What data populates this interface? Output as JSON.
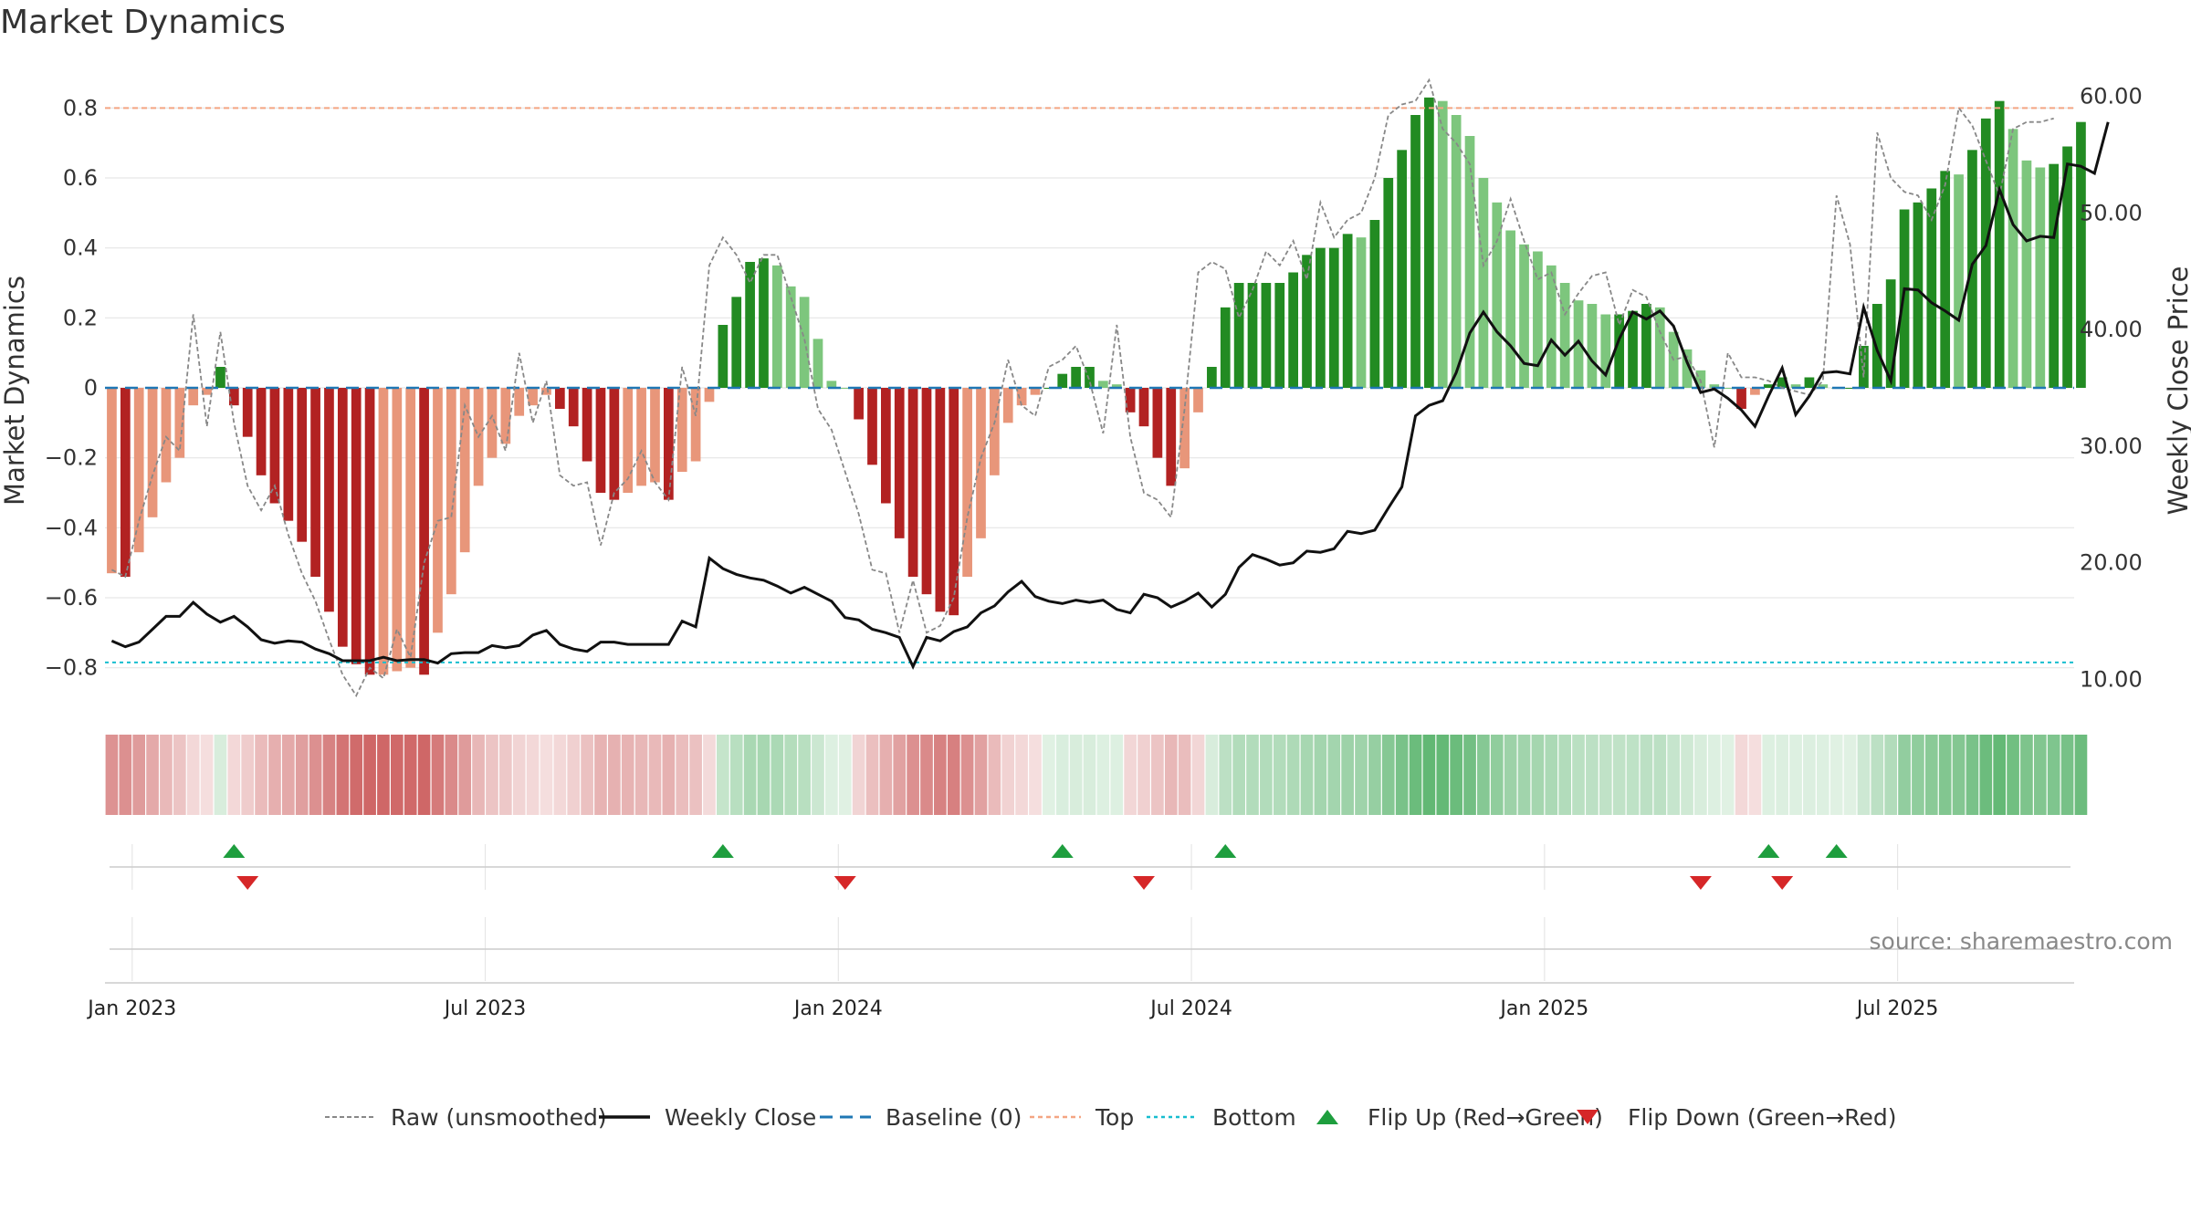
{
  "title": "Market Dynamics",
  "source": "source: sharemaestro.com",
  "colors": {
    "strong_red": "#b22222",
    "light_red": "#e8967a",
    "strong_green": "#228b22",
    "light_green": "#7dc67d",
    "baseline": "#1f77b4",
    "top": "#f4a582",
    "bottom": "#17becf",
    "flip_up": "#1e9e3e",
    "flip_down": "#d62728",
    "raw": "#888888",
    "close": "#111111"
  },
  "chart_data": {
    "type": "bar",
    "title": "Market Dynamics",
    "ylabel": "Market Dynamics",
    "y2label": "Weekly Close Price",
    "ylim": [
      -0.9,
      0.9
    ],
    "y2lim": [
      8,
      62
    ],
    "y_ticks": [
      "0.8",
      "0.6",
      "0.4",
      "0.2",
      "0",
      "−0.2",
      "−0.4",
      "−0.6",
      "−0.8"
    ],
    "y_tick_values": [
      0.8,
      0.6,
      0.4,
      0.2,
      0,
      -0.2,
      -0.4,
      -0.6,
      -0.8
    ],
    "y2_ticks": [
      "60.00",
      "50.00",
      "40.00",
      "30.00",
      "20.00",
      "10.00"
    ],
    "y2_tick_values": [
      60,
      50,
      40,
      30,
      20,
      10
    ],
    "x_ticks": [
      "Jan 2023",
      "Jul 2023",
      "Jan 2024",
      "Jul 2024",
      "Jan 2025",
      "Jul 2025"
    ],
    "x_tick_weeks": [
      1.5,
      27.5,
      53.5,
      79.5,
      105.5,
      131.5
    ],
    "reference_lines": {
      "baseline": 0,
      "top": 0.8,
      "bottom": -0.785
    },
    "week_start": "2022-12-19",
    "weeks": 145,
    "series": [
      {
        "name": "Market Dynamics",
        "values": [
          -0.53,
          -0.54,
          -0.47,
          -0.37,
          -0.27,
          -0.2,
          -0.05,
          -0.02,
          0.06,
          -0.05,
          -0.14,
          -0.25,
          -0.33,
          -0.38,
          -0.44,
          -0.54,
          -0.64,
          -0.74,
          -0.79,
          -0.82,
          -0.82,
          -0.81,
          -0.8,
          -0.82,
          -0.7,
          -0.59,
          -0.47,
          -0.28,
          -0.2,
          -0.16,
          -0.08,
          -0.05,
          -0.02,
          -0.06,
          -0.11,
          -0.21,
          -0.3,
          -0.32,
          -0.3,
          -0.28,
          -0.27,
          -0.32,
          -0.24,
          -0.21,
          -0.04,
          0.18,
          0.26,
          0.36,
          0.37,
          0.35,
          0.29,
          0.26,
          0.14,
          0.02,
          0.0,
          -0.09,
          -0.22,
          -0.33,
          -0.43,
          -0.54,
          -0.59,
          -0.64,
          -0.65,
          -0.54,
          -0.43,
          -0.25,
          -0.1,
          -0.05,
          -0.02,
          0.0,
          0.04,
          0.06,
          0.06,
          0.02,
          0.01,
          -0.07,
          -0.11,
          -0.2,
          -0.28,
          -0.23,
          -0.07,
          0.06,
          0.23,
          0.3,
          0.3,
          0.3,
          0.3,
          0.33,
          0.38,
          0.4,
          0.4,
          0.44,
          0.43,
          0.48,
          0.6,
          0.68,
          0.78,
          0.83,
          0.82,
          0.78,
          0.72,
          0.6,
          0.53,
          0.45,
          0.41,
          0.39,
          0.35,
          0.3,
          0.25,
          0.24,
          0.21,
          0.21,
          0.22,
          0.24,
          0.23,
          0.16,
          0.11,
          0.05,
          0.01,
          0.0,
          -0.06,
          -0.02,
          0.01,
          0.03,
          0.01,
          0.03,
          0.01,
          0.0,
          0.0,
          0.12,
          0.24,
          0.31,
          0.51,
          0.53,
          0.57,
          0.62,
          0.61,
          0.68,
          0.77,
          0.82,
          0.74,
          0.65,
          0.63,
          0.64,
          0.69,
          0.76
        ]
      },
      {
        "name": "Raw (unsmoothed)",
        "values": [
          -0.52,
          -0.54,
          -0.38,
          -0.25,
          -0.14,
          -0.18,
          0.21,
          -0.11,
          0.16,
          -0.1,
          -0.28,
          -0.35,
          -0.28,
          -0.42,
          -0.53,
          -0.61,
          -0.72,
          -0.82,
          -0.88,
          -0.8,
          -0.83,
          -0.69,
          -0.77,
          -0.5,
          -0.38,
          -0.37,
          -0.05,
          -0.14,
          -0.08,
          -0.18,
          0.1,
          -0.1,
          0.02,
          -0.25,
          -0.28,
          -0.27,
          -0.45,
          -0.3,
          -0.26,
          -0.18,
          -0.27,
          -0.32,
          0.06,
          -0.08,
          0.35,
          0.43,
          0.38,
          0.3,
          0.38,
          0.38,
          0.26,
          0.14,
          -0.06,
          -0.12,
          -0.24,
          -0.36,
          -0.52,
          -0.53,
          -0.7,
          -0.55,
          -0.7,
          -0.68,
          -0.6,
          -0.37,
          -0.2,
          -0.1,
          0.08,
          -0.05,
          -0.08,
          0.06,
          0.08,
          0.12,
          0.02,
          -0.13,
          0.18,
          -0.14,
          -0.3,
          -0.32,
          -0.37,
          -0.06,
          0.33,
          0.36,
          0.34,
          0.2,
          0.28,
          0.39,
          0.35,
          0.42,
          0.31,
          0.53,
          0.43,
          0.48,
          0.5,
          0.6,
          0.78,
          0.81,
          0.82,
          0.88,
          0.74,
          0.7,
          0.64,
          0.35,
          0.42,
          0.54,
          0.42,
          0.31,
          0.33,
          0.21,
          0.27,
          0.32,
          0.33,
          0.18,
          0.28,
          0.26,
          0.16,
          0.08,
          0.09,
          0.02,
          -0.17,
          0.1,
          0.03,
          0.03,
          0.02,
          0.0,
          -0.01,
          -0.02,
          0.02,
          0.55,
          0.41,
          0.03,
          0.73,
          0.6,
          0.56,
          0.55,
          0.48,
          0.58,
          0.8,
          0.75,
          0.65,
          0.55,
          0.74,
          0.76,
          0.76,
          0.77
        ]
      },
      {
        "name": "Weekly Close",
        "values": [
          13.3,
          12.8,
          13.2,
          14.3,
          15.4,
          15.4,
          16.6,
          15.6,
          14.9,
          15.4,
          14.5,
          13.4,
          13.1,
          13.3,
          13.2,
          12.6,
          12.2,
          11.6,
          11.6,
          11.6,
          11.9,
          11.6,
          11.7,
          11.7,
          11.4,
          12.2,
          12.3,
          12.3,
          12.9,
          12.7,
          12.9,
          13.8,
          14.2,
          13.0,
          12.6,
          12.4,
          13.2,
          13.2,
          13.0,
          13.0,
          13.0,
          13.0,
          15.0,
          14.5,
          20.4,
          19.5,
          19.0,
          18.7,
          18.5,
          18.0,
          17.4,
          17.9,
          17.3,
          16.7,
          15.3,
          15.1,
          14.3,
          14.0,
          13.6,
          11.1,
          13.6,
          13.3,
          14.1,
          14.5,
          15.7,
          16.3,
          17.5,
          18.4,
          17.1,
          16.7,
          16.5,
          16.8,
          16.6,
          16.8,
          16.0,
          15.7,
          17.3,
          17.0,
          16.2,
          16.7,
          17.4,
          16.2,
          17.3,
          19.6,
          20.7,
          20.3,
          19.8,
          20.0,
          21.0,
          20.9,
          21.2,
          22.7,
          22.5,
          22.8,
          24.7,
          26.5,
          32.6,
          33.5,
          33.9,
          36.3,
          39.7,
          41.5,
          39.8,
          38.6,
          37.1,
          36.9,
          39.1,
          37.8,
          39.0,
          37.3,
          36.1,
          39.2,
          41.5,
          40.9,
          41.6,
          40.3,
          37.2,
          34.6,
          34.9,
          34.1,
          33.1,
          31.7,
          34.3,
          36.7,
          32.7,
          34.3,
          36.3,
          36.4,
          36.2,
          41.9,
          38.2,
          35.6,
          43.5,
          43.4,
          42.3,
          41.6,
          40.8,
          45.6,
          47.2,
          52.0,
          49.0,
          47.6,
          48.0,
          47.9,
          54.2,
          54.0,
          53.4,
          57.8
        ]
      }
    ],
    "flip_up_weeks": [
      9,
      45,
      70,
      82,
      122,
      127
    ],
    "flip_down_weeks": [
      10,
      54,
      76,
      117,
      123
    ],
    "legend_position": "bottom"
  },
  "legend": [
    {
      "key": "raw",
      "label": "Raw (unsmoothed)"
    },
    {
      "key": "close",
      "label": "Weekly Close"
    },
    {
      "key": "baseline",
      "label": "Baseline (0)"
    },
    {
      "key": "top",
      "label": "Top"
    },
    {
      "key": "bottom",
      "label": "Bottom"
    },
    {
      "key": "up",
      "label": "Flip Up (Red→Green)"
    },
    {
      "key": "down",
      "label": "Flip Down (Green→Red)"
    }
  ]
}
